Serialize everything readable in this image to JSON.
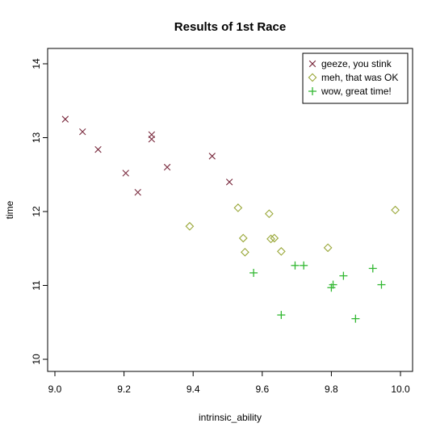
{
  "chart_data": {
    "type": "scatter",
    "title": "Results of 1st Race",
    "xlabel": "intrinsic_ability",
    "ylabel": "time",
    "xlim": [
      9.0,
      10.0
    ],
    "ylim": [
      10,
      14
    ],
    "xticks": [
      "9.0",
      "9.2",
      "9.4",
      "9.6",
      "9.8",
      "10.0"
    ],
    "yticks": [
      "10",
      "11",
      "12",
      "13",
      "14"
    ],
    "grid": false,
    "legend_position": "top-right",
    "series": [
      {
        "name": "geeze, you stink",
        "marker": "x",
        "color": "#7a2b3e",
        "points": [
          [
            9.03,
            13.25
          ],
          [
            9.08,
            13.08
          ],
          [
            9.125,
            12.84
          ],
          [
            9.205,
            12.52
          ],
          [
            9.24,
            12.26
          ],
          [
            9.28,
            13.04
          ],
          [
            9.28,
            12.98
          ],
          [
            9.325,
            12.6
          ],
          [
            9.455,
            12.75
          ],
          [
            9.505,
            12.4
          ]
        ]
      },
      {
        "name": "meh, that was OK",
        "marker": "diamond",
        "color": "#9aa83a",
        "points": [
          [
            9.39,
            11.8
          ],
          [
            9.53,
            12.05
          ],
          [
            9.545,
            11.64
          ],
          [
            9.55,
            11.45
          ],
          [
            9.62,
            11.97
          ],
          [
            9.625,
            11.63
          ],
          [
            9.635,
            11.64
          ],
          [
            9.655,
            11.46
          ],
          [
            9.79,
            11.51
          ],
          [
            9.985,
            12.02
          ]
        ]
      },
      {
        "name": "wow, great time!",
        "marker": "plus",
        "color": "#33b833",
        "points": [
          [
            9.575,
            11.17
          ],
          [
            9.655,
            10.6
          ],
          [
            9.695,
            11.27
          ],
          [
            9.72,
            11.27
          ],
          [
            9.8,
            10.97
          ],
          [
            9.805,
            11.01
          ],
          [
            9.835,
            11.13
          ],
          [
            9.87,
            10.55
          ],
          [
            9.92,
            11.23
          ],
          [
            9.945,
            11.01
          ]
        ]
      }
    ]
  }
}
